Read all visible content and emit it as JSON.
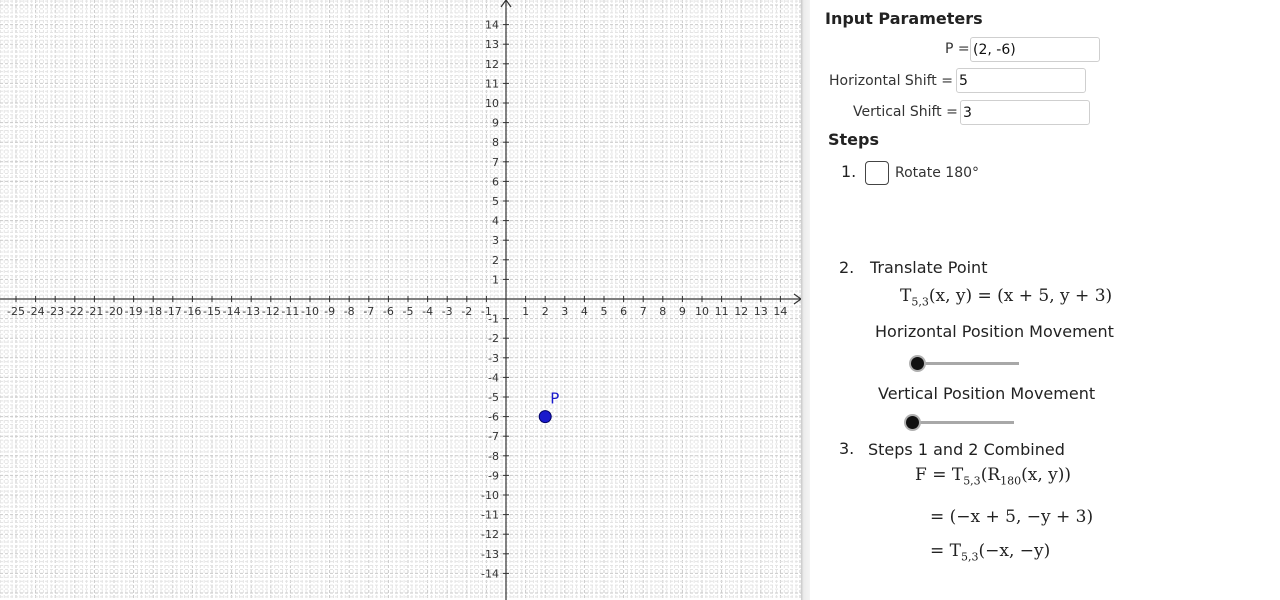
{
  "graph": {
    "x_range": [
      -25,
      14
    ],
    "y_range": [
      -14,
      14
    ],
    "x_tick_labels": [
      "-25",
      "-24",
      "-23",
      "-22",
      "-21",
      "-20",
      "-19",
      "-18",
      "-17",
      "-16",
      "-15",
      "-14",
      "-13",
      "-12",
      "-11",
      "-10",
      "-9",
      "-8",
      "-7",
      "-6",
      "-5",
      "-4",
      "-3",
      "-2",
      "-1",
      "1",
      "2",
      "3",
      "4",
      "5",
      "6",
      "7",
      "8",
      "9",
      "10",
      "11",
      "12",
      "13",
      "14"
    ],
    "y_tick_labels": [
      "14",
      "13",
      "12",
      "11",
      "10",
      "9",
      "8",
      "7",
      "6",
      "5",
      "4",
      "3",
      "2",
      "1",
      "-1",
      "-2",
      "-3",
      "-4",
      "-5",
      "-6",
      "-7",
      "-8",
      "-9",
      "-10",
      "-11",
      "-12",
      "-13",
      "-14"
    ],
    "grid": "dashed",
    "point": {
      "label": "P",
      "x": 2,
      "y": -6,
      "color": "#1a1acc"
    }
  },
  "panel": {
    "input_header": "Input Parameters",
    "inputs": [
      {
        "label": "P =",
        "value": "(2, -6)"
      },
      {
        "label": "Horizontal Shift =",
        "value": "5"
      },
      {
        "label": "Vertical Shift =",
        "value": "3"
      }
    ],
    "steps_header": "Steps",
    "step1": {
      "number": "1.",
      "label": "Rotate 180°",
      "checked": false
    },
    "step2": {
      "number": "2.",
      "title": "Translate Point",
      "formula_t": "T",
      "formula_sub": "5,3",
      "formula_rest": "(x, y) = (x + 5, y + 3)",
      "slider1_label": "Horizontal Position Movement",
      "slider1_value": 0,
      "slider2_label": "Vertical Position Movement",
      "slider2_value": 0
    },
    "step3": {
      "number": "3.",
      "title": "Steps 1 and 2 Combined",
      "line1_a": "F = T",
      "line1_sub": "5,3",
      "line1_b": "(R",
      "line1_sub2": "180",
      "line1_c": "(x, y))",
      "line2": "= (−x + 5, −y + 3)",
      "line3_a": "= T",
      "line3_sub": "5,3",
      "line3_b": "(−x, −y)"
    }
  }
}
